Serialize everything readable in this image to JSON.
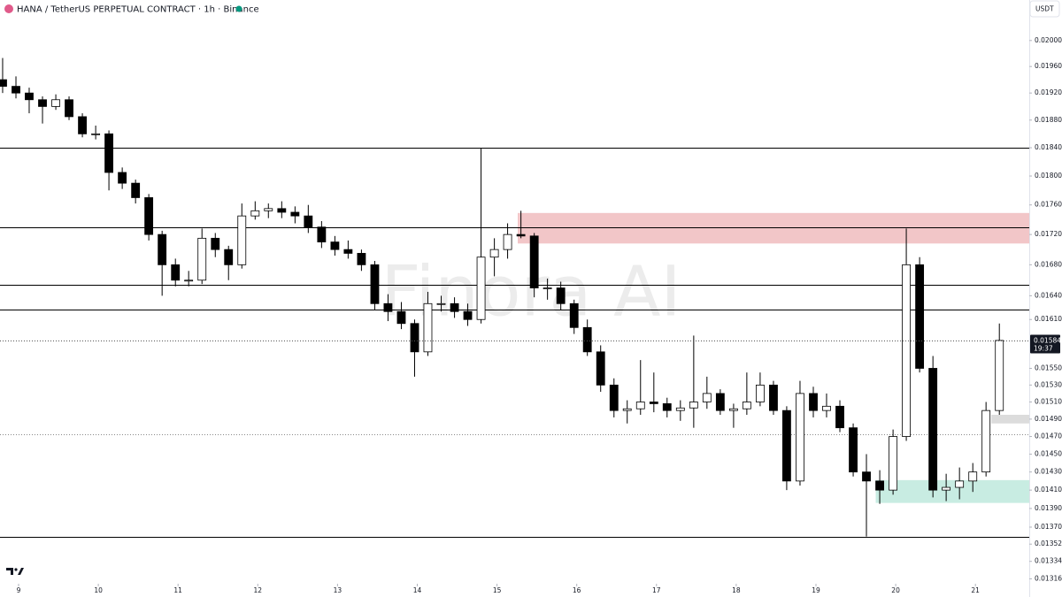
{
  "header": {
    "title": "HANA / TetherUS PERPETUAL CONTRACT · 1h · Binance",
    "currency": "USDT"
  },
  "watermark": "Finora AI",
  "chart_data": {
    "type": "candlestick",
    "x": [
      8.8,
      8.967,
      9.133,
      9.3,
      9.467,
      9.633,
      9.8,
      9.967,
      10.133,
      10.3,
      10.467,
      10.633,
      10.8,
      10.967,
      11.133,
      11.3,
      11.467,
      11.633,
      11.8,
      11.967,
      12.133,
      12.3,
      12.467,
      12.633,
      12.8,
      12.967,
      13.133,
      13.3,
      13.467,
      13.633,
      13.8,
      13.967,
      14.133,
      14.3,
      14.467,
      14.633,
      14.8,
      14.967,
      15.133,
      15.3,
      15.467,
      15.633,
      15.8,
      15.967,
      16.133,
      16.3,
      16.467,
      16.633,
      16.8,
      16.967,
      17.133,
      17.3,
      17.467,
      17.633,
      17.8,
      17.967,
      18.133,
      18.3,
      18.467,
      18.633,
      18.8,
      18.967,
      19.133,
      19.3,
      19.467,
      19.633,
      19.8,
      19.967,
      20.133,
      20.3,
      20.467,
      20.633,
      20.8,
      20.967,
      21.133,
      21.3
    ],
    "open": [
      0.0194,
      0.0193,
      0.0192,
      0.0191,
      0.019,
      0.0191,
      0.01885,
      0.0186,
      0.0186,
      0.01805,
      0.0179,
      0.0177,
      0.0172,
      0.0168,
      0.0166,
      0.0166,
      0.01715,
      0.017,
      0.0168,
      0.01745,
      0.01752,
      0.01755,
      0.0175,
      0.01745,
      0.0173,
      0.0171,
      0.017,
      0.01695,
      0.0168,
      0.0163,
      0.0162,
      0.01605,
      0.0157,
      0.0163,
      0.0163,
      0.0162,
      0.0161,
      0.0169,
      0.017,
      0.0172,
      0.01718,
      0.0165,
      0.0165,
      0.0163,
      0.016,
      0.0157,
      0.0153,
      0.015,
      0.01502,
      0.0151,
      0.01508,
      0.015,
      0.01503,
      0.0151,
      0.0152,
      0.015,
      0.01502,
      0.0151,
      0.0153,
      0.015,
      0.0142,
      0.0152,
      0.015,
      0.01505,
      0.0148,
      0.0143,
      0.0142,
      0.0141,
      0.0147,
      0.0168,
      0.0155,
      0.0141,
      0.01413,
      0.0142,
      0.0143,
      0.015
    ],
    "high": [
      0.01973,
      0.01945,
      0.01928,
      0.01915,
      0.01918,
      0.01915,
      0.0189,
      0.01872,
      0.01865,
      0.01812,
      0.01795,
      0.01775,
      0.01725,
      0.01688,
      0.01672,
      0.01728,
      0.01722,
      0.01705,
      0.01762,
      0.01765,
      0.01762,
      0.01765,
      0.01758,
      0.0176,
      0.01738,
      0.01718,
      0.01712,
      0.017,
      0.01685,
      0.01642,
      0.01632,
      0.0161,
      0.01645,
      0.0164,
      0.01638,
      0.0163,
      0.0184,
      0.01715,
      0.01735,
      0.01752,
      0.01722,
      0.01662,
      0.01658,
      0.01635,
      0.0161,
      0.01578,
      0.01538,
      0.01512,
      0.0156,
      0.01545,
      0.01515,
      0.01512,
      0.0159,
      0.0154,
      0.01525,
      0.01508,
      0.01545,
      0.01545,
      0.01535,
      0.01505,
      0.01535,
      0.01528,
      0.0152,
      0.01512,
      0.01485,
      0.0145,
      0.01432,
      0.01478,
      0.01728,
      0.0169,
      0.01565,
      0.01428,
      0.01435,
      0.0144,
      0.0151,
      0.01605
    ],
    "low": [
      0.0192,
      0.01912,
      0.0189,
      0.01875,
      0.01895,
      0.0188,
      0.01855,
      0.01852,
      0.0178,
      0.01782,
      0.01762,
      0.01712,
      0.0164,
      0.01652,
      0.01652,
      0.01655,
      0.0169,
      0.0166,
      0.01675,
      0.0174,
      0.01742,
      0.01742,
      0.01735,
      0.01722,
      0.01702,
      0.01692,
      0.01688,
      0.01672,
      0.01622,
      0.01608,
      0.01598,
      0.0154,
      0.01565,
      0.0162,
      0.01612,
      0.01602,
      0.01605,
      0.01665,
      0.01688,
      0.01715,
      0.01638,
      0.01635,
      0.01622,
      0.01592,
      0.01565,
      0.01522,
      0.01492,
      0.01485,
      0.01495,
      0.01498,
      0.01492,
      0.01488,
      0.0148,
      0.01502,
      0.01495,
      0.0148,
      0.01495,
      0.01505,
      0.01495,
      0.0141,
      0.01415,
      0.01492,
      0.01492,
      0.01475,
      0.01425,
      0.0136,
      0.01395,
      0.01405,
      0.01465,
      0.01545,
      0.01402,
      0.01398,
      0.014,
      0.01408,
      0.01425,
      0.01495
    ],
    "close": [
      0.0193,
      0.0192,
      0.0191,
      0.019,
      0.0191,
      0.01885,
      0.0186,
      0.0186,
      0.01805,
      0.0179,
      0.0177,
      0.0172,
      0.0168,
      0.0166,
      0.0166,
      0.01715,
      0.017,
      0.0168,
      0.01745,
      0.01752,
      0.01755,
      0.0175,
      0.01745,
      0.0173,
      0.0171,
      0.017,
      0.01695,
      0.0168,
      0.0163,
      0.0162,
      0.01605,
      0.0157,
      0.0163,
      0.0163,
      0.0162,
      0.0161,
      0.0169,
      0.017,
      0.0172,
      0.01718,
      0.0165,
      0.0165,
      0.0163,
      0.016,
      0.0157,
      0.0153,
      0.015,
      0.01502,
      0.0151,
      0.01508,
      0.015,
      0.01503,
      0.0151,
      0.0152,
      0.015,
      0.01502,
      0.0151,
      0.0153,
      0.015,
      0.0142,
      0.0152,
      0.015,
      0.01505,
      0.0148,
      0.0143,
      0.0142,
      0.0141,
      0.0147,
      0.0168,
      0.0155,
      0.0141,
      0.01413,
      0.0142,
      0.0143,
      0.015,
      0.01584
    ],
    "colors": {
      "up": "#ffffff",
      "down": "#000000",
      "wick": "#000000"
    },
    "log": true,
    "ylim": [
      0.01311,
      0.02064
    ],
    "yticks": [
      {
        "value": 0.02,
        "label": "0.02000"
      },
      {
        "value": 0.0196,
        "label": "0.01960"
      },
      {
        "value": 0.0192,
        "label": "0.01920"
      },
      {
        "value": 0.0188,
        "label": "0.01880"
      },
      {
        "value": 0.0184,
        "label": "0.01840"
      },
      {
        "value": 0.018,
        "label": "0.01800"
      },
      {
        "value": 0.0176,
        "label": "0.01760"
      },
      {
        "value": 0.0172,
        "label": "0.01720"
      },
      {
        "value": 0.0168,
        "label": "0.01680"
      },
      {
        "value": 0.0164,
        "label": "0.01640"
      },
      {
        "value": 0.0161,
        "label": "0.01610"
      },
      {
        "value": 0.0155,
        "label": "0.01550"
      },
      {
        "value": 0.0153,
        "label": "0.01530"
      },
      {
        "value": 0.0151,
        "label": "0.01510"
      },
      {
        "value": 0.0149,
        "label": "0.01490"
      },
      {
        "value": 0.0147,
        "label": "0.01470"
      },
      {
        "value": 0.0145,
        "label": "0.01450"
      },
      {
        "value": 0.0143,
        "label": "0.01430"
      },
      {
        "value": 0.0141,
        "label": "0.01410"
      },
      {
        "value": 0.0139,
        "label": "0.01390"
      },
      {
        "value": 0.0137,
        "label": "0.01370"
      },
      {
        "value": 0.01352,
        "label": "0.01352"
      },
      {
        "value": 0.01334,
        "label": "0.01334"
      },
      {
        "value": 0.01316,
        "label": "0.01316"
      }
    ],
    "xlim": [
      8.767,
      21.675
    ],
    "xticks": [
      9,
      10,
      11,
      12,
      13,
      14,
      15,
      16,
      17,
      18,
      19,
      20,
      21
    ],
    "last_price": {
      "value": 0.01584,
      "label": "0.01584",
      "countdown": "19:37"
    },
    "levels": [
      0.0184,
      0.0173,
      0.01654,
      0.01623,
      0.0136
    ],
    "dotted_levels": [
      0.01473
    ],
    "zones": [
      {
        "x": 15.26,
        "top": 0.01749,
        "bottom": 0.01708,
        "color": "#f2c6c8"
      },
      {
        "x": 19.75,
        "top": 0.01421,
        "bottom": 0.01396,
        "color": "#c8ece2"
      },
      {
        "x": 21.2,
        "top": 0.01495,
        "bottom": 0.01485,
        "color": "#dcdcdc"
      }
    ]
  }
}
